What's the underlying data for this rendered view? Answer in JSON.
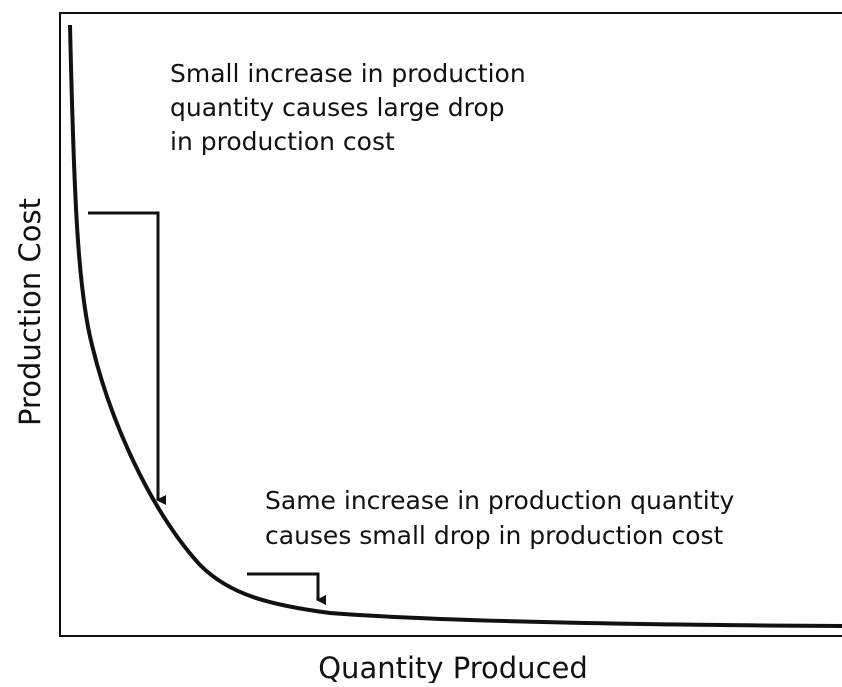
{
  "diagram": {
    "x_axis_label": "Quantity Produced",
    "y_axis_label": "Production Cost",
    "annotations": [
      {
        "lines": [
          "Small increase in production",
          "quantity causes large drop",
          "in production cost"
        ]
      },
      {
        "lines": [
          "Same increase in production quantity",
          "causes small drop in production cost"
        ]
      }
    ]
  }
}
